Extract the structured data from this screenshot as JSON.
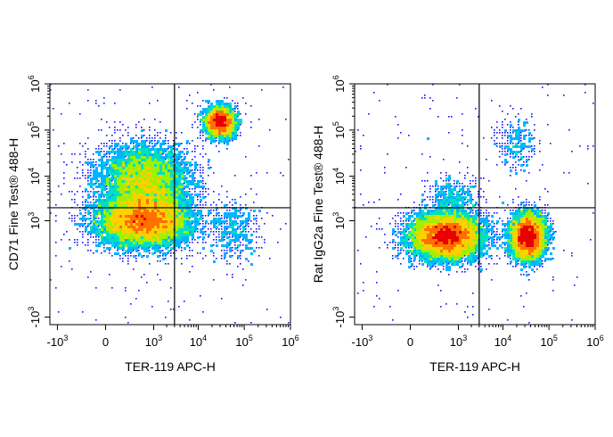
{
  "chart_data": [
    {
      "type": "scatter",
      "subtype": "flow-cytometry-density-plot",
      "xlabel": "TER-119 APC-H",
      "ylabel": "CD71 Fine Test® 488-H",
      "x_scale": "biexponential",
      "y_scale": "biexponential",
      "xlim": [
        -1500,
        1000000
      ],
      "ylim": [
        -1500,
        1000000
      ],
      "x_ticks": [
        {
          "value": -1000,
          "base": "-10",
          "exp": "3"
        },
        {
          "value": 0,
          "base": "0",
          "exp": ""
        },
        {
          "value": 1000,
          "base": "10",
          "exp": "3"
        },
        {
          "value": 10000,
          "base": "10",
          "exp": "4"
        },
        {
          "value": 100000,
          "base": "10",
          "exp": "5"
        },
        {
          "value": 1000000,
          "base": "10",
          "exp": "6"
        }
      ],
      "y_ticks": [
        {
          "value": -1000,
          "base": "-10",
          "exp": "3"
        },
        {
          "value": 1000,
          "base": "10",
          "exp": "3"
        },
        {
          "value": 10000,
          "base": "10",
          "exp": "4"
        },
        {
          "value": 100000,
          "base": "10",
          "exp": "5"
        },
        {
          "value": 1000000,
          "base": "10",
          "exp": "6"
        }
      ],
      "quadrant_gate": {
        "x": 3000,
        "y": 2000
      },
      "populations": [
        {
          "x_center": 600,
          "y_center": 1000,
          "x_spread_decades": 0.9,
          "y_spread_decades": 0.5,
          "relative_density": 1.0
        },
        {
          "x_center": 600,
          "y_center": 8000,
          "x_spread_decades": 0.9,
          "y_spread_decades": 0.7,
          "relative_density": 0.6
        },
        {
          "x_center": 30000,
          "y_center": 150000,
          "x_spread_decades": 0.3,
          "y_spread_decades": 0.3,
          "relative_density": 0.35
        },
        {
          "x_center": 60000,
          "y_center": 500,
          "x_spread_decades": 0.5,
          "y_spread_decades": 0.6,
          "relative_density": 0.05
        }
      ]
    },
    {
      "type": "scatter",
      "subtype": "flow-cytometry-density-plot",
      "xlabel": "TER-119 APC-H",
      "ylabel": "Rat IgG2a Fine Test® 488-H",
      "x_scale": "biexponential",
      "y_scale": "biexponential",
      "xlim": [
        -1500,
        1000000
      ],
      "ylim": [
        -1500,
        1000000
      ],
      "x_ticks": [
        {
          "value": -1000,
          "base": "-10",
          "exp": "3"
        },
        {
          "value": 0,
          "base": "0",
          "exp": ""
        },
        {
          "value": 1000,
          "base": "10",
          "exp": "3"
        },
        {
          "value": 10000,
          "base": "10",
          "exp": "4"
        },
        {
          "value": 100000,
          "base": "10",
          "exp": "5"
        },
        {
          "value": 1000000,
          "base": "10",
          "exp": "6"
        }
      ],
      "y_ticks": [
        {
          "value": -1000,
          "base": "-10",
          "exp": "3"
        },
        {
          "value": 1000,
          "base": "10",
          "exp": "3"
        },
        {
          "value": 10000,
          "base": "10",
          "exp": "4"
        },
        {
          "value": 100000,
          "base": "10",
          "exp": "5"
        },
        {
          "value": 1000000,
          "base": "10",
          "exp": "6"
        }
      ],
      "quadrant_gate": {
        "x": 3000,
        "y": 2000
      },
      "populations": [
        {
          "x_center": 500,
          "y_center": 400,
          "x_spread_decades": 0.7,
          "y_spread_decades": 0.45,
          "relative_density": 1.0
        },
        {
          "x_center": 35000,
          "y_center": 400,
          "x_spread_decades": 0.35,
          "y_spread_decades": 0.45,
          "relative_density": 0.6
        },
        {
          "x_center": 20000,
          "y_center": 50000,
          "x_spread_decades": 0.4,
          "y_spread_decades": 0.5,
          "relative_density": 0.03
        },
        {
          "x_center": 800,
          "y_center": 3000,
          "x_spread_decades": 0.5,
          "y_spread_decades": 0.4,
          "relative_density": 0.05
        }
      ]
    }
  ],
  "colors": {
    "density_ramp": [
      "#1010ff",
      "#00b4ff",
      "#00e0c0",
      "#a0f000",
      "#ffd000",
      "#ff7000",
      "#e80000"
    ],
    "gate_line": "#000000",
    "axis": "#000000"
  }
}
